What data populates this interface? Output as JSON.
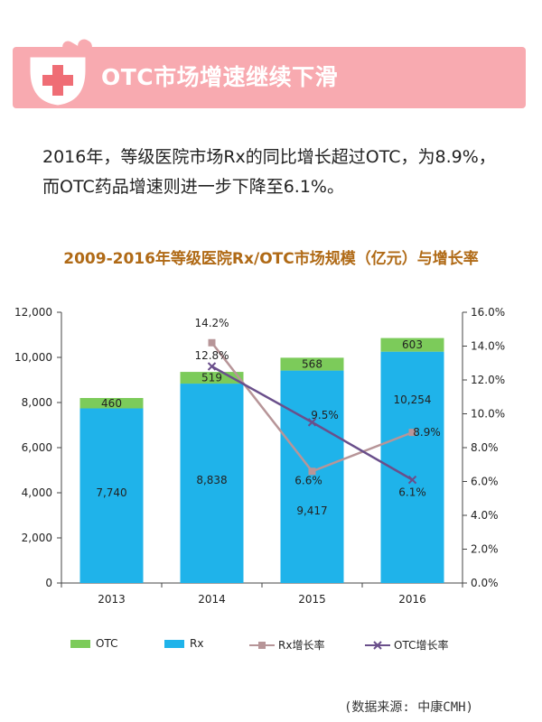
{
  "banner": {
    "title": "OTC市场增速继续下滑"
  },
  "intro": {
    "text": "2016年，等级医院市场Rx的同比增长超过OTC，为8.9%，而OTC药品增速则进一步下降至6.1%。"
  },
  "source": {
    "text": "(数据来源: 中康CMH)"
  },
  "colors": {
    "otc": "#7ccb5a",
    "rx": "#1fb3ea",
    "rx_growth": "#b79598",
    "otc_growth": "#6a4f8b",
    "title": "#b06a16",
    "banner": "#f8aab0"
  },
  "chart_data": {
    "type": "bar",
    "title": "2009-2016年等级医院Rx/OTC市场规模（亿元）与增长率",
    "categories": [
      "2013",
      "2014",
      "2015",
      "2016"
    ],
    "series": [
      {
        "name": "OTC",
        "type": "bar",
        "stacked": true,
        "axis": "left",
        "values": [
          460,
          519,
          568,
          603
        ],
        "labels": [
          "460",
          "519",
          "568",
          "603"
        ]
      },
      {
        "name": "Rx",
        "type": "bar",
        "stacked": true,
        "axis": "left",
        "values": [
          7740,
          8838,
          9417,
          10254
        ],
        "labels": [
          "7,740",
          "8,838",
          "9,417",
          "10,254"
        ]
      },
      {
        "name": "Rx增长率",
        "type": "line",
        "axis": "right",
        "values": [
          null,
          14.2,
          6.6,
          8.9
        ],
        "labels": [
          "",
          "14.2%",
          "6.6%",
          "8.9%"
        ]
      },
      {
        "name": "OTC增长率",
        "type": "line",
        "axis": "right",
        "values": [
          null,
          12.8,
          9.5,
          6.1
        ],
        "labels": [
          "",
          "12.8%",
          "9.5%",
          "6.1%"
        ]
      }
    ],
    "left_axis": {
      "min": 0,
      "max": 12000,
      "ticks": [
        "0",
        "2,000",
        "4,000",
        "6,000",
        "8,000",
        "10,000",
        "12,000"
      ]
    },
    "right_axis": {
      "min": 0,
      "max": 16,
      "ticks": [
        "0.0%",
        "2.0%",
        "4.0%",
        "6.0%",
        "8.0%",
        "10.0%",
        "12.0%",
        "14.0%",
        "16.0%"
      ]
    },
    "legend": [
      "OTC",
      "Rx",
      "Rx增长率",
      "OTC增长率"
    ]
  }
}
